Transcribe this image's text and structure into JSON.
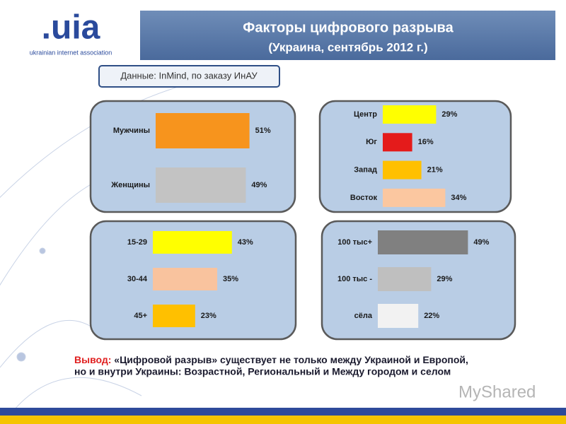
{
  "logo": {
    "mark": ".uia",
    "caption": "ukrainian internet association"
  },
  "header": {
    "title": "Факторы цифрового разрыва",
    "subtitle": "(Украина, сентябрь 2012 г.)"
  },
  "source": "Данные: InMind, по заказу ИнАУ",
  "conclusion": {
    "label": "Вывод:",
    "lines": [
      "«Цифровой разрыв» существует не только между Украиной и Европой,",
      "но и внутри Украины: Возрастной, Региональный и Между городом и селом"
    ]
  },
  "watermark": "MyShared",
  "chart_data": [
    {
      "type": "bar",
      "orientation": "horizontal",
      "categories": [
        "Мужчины",
        "Женщины"
      ],
      "values": [
        51,
        49
      ],
      "value_labels": [
        "51%",
        "49%"
      ],
      "colors": [
        "#f7941d",
        "#c3c3c3"
      ]
    },
    {
      "type": "bar",
      "orientation": "horizontal",
      "categories": [
        "Центр",
        "Юг",
        "Запад",
        "Восток"
      ],
      "values": [
        29,
        16,
        21,
        34
      ],
      "value_labels": [
        "29%",
        "16%",
        "21%",
        "34%"
      ],
      "colors": [
        "#ffff00",
        "#e41b1b",
        "#ffc000",
        "#fbc7a0"
      ]
    },
    {
      "type": "bar",
      "orientation": "horizontal",
      "categories": [
        "15-29",
        "30-44",
        "45+"
      ],
      "values": [
        43,
        35,
        23
      ],
      "value_labels": [
        "43%",
        "35%",
        "23%"
      ],
      "colors": [
        "#ffff00",
        "#f9c39e",
        "#ffc000"
      ]
    },
    {
      "type": "bar",
      "orientation": "horizontal",
      "categories": [
        "100 тыс+",
        "100 тыс -",
        "сёла"
      ],
      "values": [
        49,
        29,
        22
      ],
      "value_labels": [
        "49%",
        "29%",
        "22%"
      ],
      "colors": [
        "#808080",
        "#bfbfbf",
        "#f2f2f2"
      ]
    }
  ]
}
